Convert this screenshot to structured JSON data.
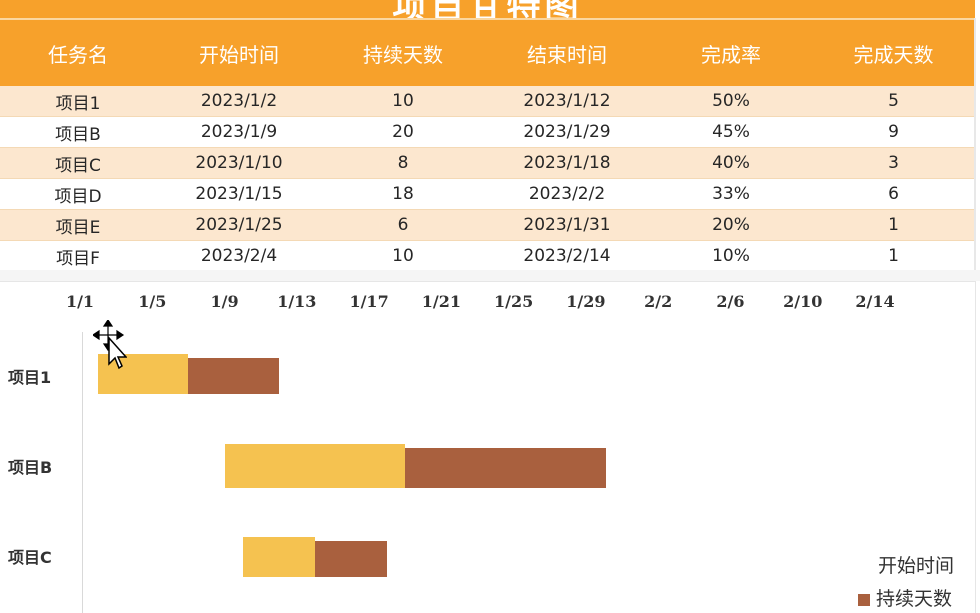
{
  "title": "项目甘特图",
  "table": {
    "headers": [
      "任务名",
      "开始时间",
      "持续天数",
      "结束时间",
      "完成率",
      "完成天数"
    ],
    "rows": [
      [
        "项目1",
        "2023/1/2",
        "10",
        "2023/1/12",
        "50%",
        "5"
      ],
      [
        "项目B",
        "2023/1/9",
        "20",
        "2023/1/29",
        "45%",
        "9"
      ],
      [
        "项目C",
        "2023/1/10",
        "8",
        "2023/1/18",
        "40%",
        "3"
      ],
      [
        "项目D",
        "2023/1/15",
        "18",
        "2023/2/2",
        "33%",
        "6"
      ],
      [
        "项目E",
        "2023/1/25",
        "6",
        "2023/1/31",
        "20%",
        "1"
      ],
      [
        "项目F",
        "2023/2/4",
        "10",
        "2023/2/14",
        "10%",
        "1"
      ]
    ]
  },
  "colors": {
    "header": "#f7a12b",
    "start_bar": "#f5c250",
    "duration_bar": "#a9603e"
  },
  "chart_data": {
    "type": "bar",
    "orientation": "horizontal-stacked",
    "x_ticks": [
      "1/1",
      "1/5",
      "1/9",
      "1/13",
      "1/17",
      "1/21",
      "1/25",
      "1/29",
      "2/2",
      "2/6",
      "2/10",
      "2/14"
    ],
    "xlim": [
      "2023-01-01",
      "2023-02-14"
    ],
    "categories": [
      "项目1",
      "项目B",
      "项目C"
    ],
    "series": [
      {
        "name": "开始时间",
        "values": [
          "2023-01-02",
          "2023-01-09",
          "2023-01-10"
        ]
      },
      {
        "name": "持续天数",
        "values": [
          10,
          20,
          8
        ]
      }
    ],
    "legend": [
      "开始时间",
      "持续天数"
    ],
    "legend_position": "bottom-right"
  }
}
